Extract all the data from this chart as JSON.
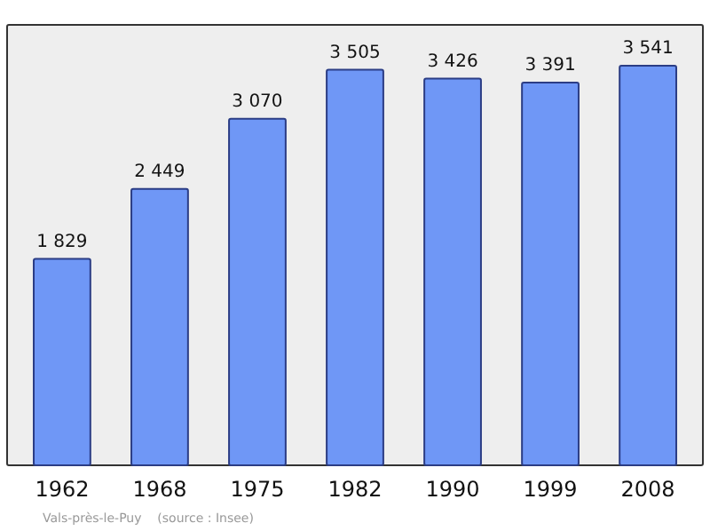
{
  "chart_data": {
    "type": "bar",
    "categories": [
      "1962",
      "1968",
      "1975",
      "1982",
      "1990",
      "1999",
      "2008"
    ],
    "values": [
      1829,
      2449,
      3070,
      3505,
      3426,
      3391,
      3541
    ],
    "value_labels": [
      "1 829",
      "2 449",
      "3 070",
      "3 505",
      "3 426",
      "3 391",
      "3 541"
    ],
    "color": "#6f97f6",
    "annotations": [
      "Vals-près-le-Puy    (source : Insee)"
    ]
  }
}
